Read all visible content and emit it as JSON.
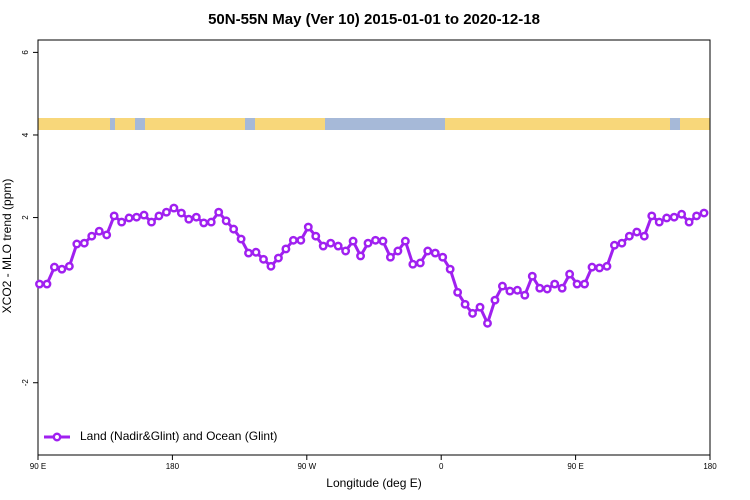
{
  "chart_data": {
    "type": "line",
    "title": "50N-55N May (Ver 10)   2015-01-01 to 2020-12-18",
    "x_label": "Longitude (deg E)",
    "y_label": "XCO2 - MLO trend (ppm)",
    "xlim": [
      90,
      540
    ],
    "ylim": [
      -3.75,
      6.3
    ],
    "xticks": [
      {
        "value": 90,
        "label": "90 E"
      },
      {
        "value": 180,
        "label": "180"
      },
      {
        "value": 270,
        "label": "90 W"
      },
      {
        "value": 360,
        "label": "0"
      },
      {
        "value": 450,
        "label": "90 E"
      },
      {
        "value": 540,
        "label": "180"
      }
    ],
    "yticks": [
      -2,
      2,
      4,
      6
    ],
    "legend_position": "bottom-left",
    "x": [
      91,
      96,
      101,
      106,
      111,
      116,
      121,
      126,
      131,
      136,
      141,
      146,
      151,
      156,
      161,
      166,
      171,
      176,
      181,
      186,
      191,
      196,
      201,
      206,
      211,
      216,
      221,
      226,
      231,
      236,
      241,
      246,
      251,
      256,
      261,
      266,
      271,
      276,
      281,
      286,
      291,
      296,
      301,
      306,
      311,
      316,
      321,
      326,
      331,
      336,
      341,
      346,
      351,
      356,
      361,
      366,
      371,
      376,
      381,
      386,
      391,
      396,
      401,
      406,
      411,
      416,
      421,
      426,
      431,
      436,
      441,
      446,
      451,
      456,
      461,
      466,
      471,
      476,
      481,
      486,
      491,
      496,
      501,
      506,
      511,
      516,
      521,
      526,
      531,
      536
    ],
    "series": [
      {
        "name": "Land (Nadir&Glint) and Ocean (Glint)",
        "color": "#a020f0",
        "values": [
          0.39,
          0.39,
          0.8,
          0.75,
          0.82,
          1.36,
          1.38,
          1.55,
          1.67,
          1.58,
          2.04,
          1.89,
          1.99,
          2.01,
          2.06,
          1.89,
          2.04,
          2.13,
          2.23,
          2.11,
          1.96,
          2.01,
          1.87,
          1.89,
          2.13,
          1.92,
          1.72,
          1.48,
          1.14,
          1.16,
          0.99,
          0.82,
          1.02,
          1.24,
          1.45,
          1.45,
          1.77,
          1.55,
          1.31,
          1.38,
          1.31,
          1.19,
          1.43,
          1.07,
          1.38,
          1.45,
          1.43,
          1.04,
          1.19,
          1.43,
          0.87,
          0.9,
          1.19,
          1.14,
          1.04,
          0.75,
          0.19,
          -0.1,
          -0.32,
          -0.17,
          -0.56,
          0,
          0.34,
          0.22,
          0.24,
          0.12,
          0.58,
          0.29,
          0.27,
          0.39,
          0.29,
          0.63,
          0.39,
          0.39,
          0.8,
          0.78,
          0.82,
          1.33,
          1.38,
          1.55,
          1.65,
          1.55,
          2.04,
          1.89,
          1.99,
          2.01,
          2.08,
          1.89,
          2.04,
          2.11
        ]
      }
    ]
  }
}
